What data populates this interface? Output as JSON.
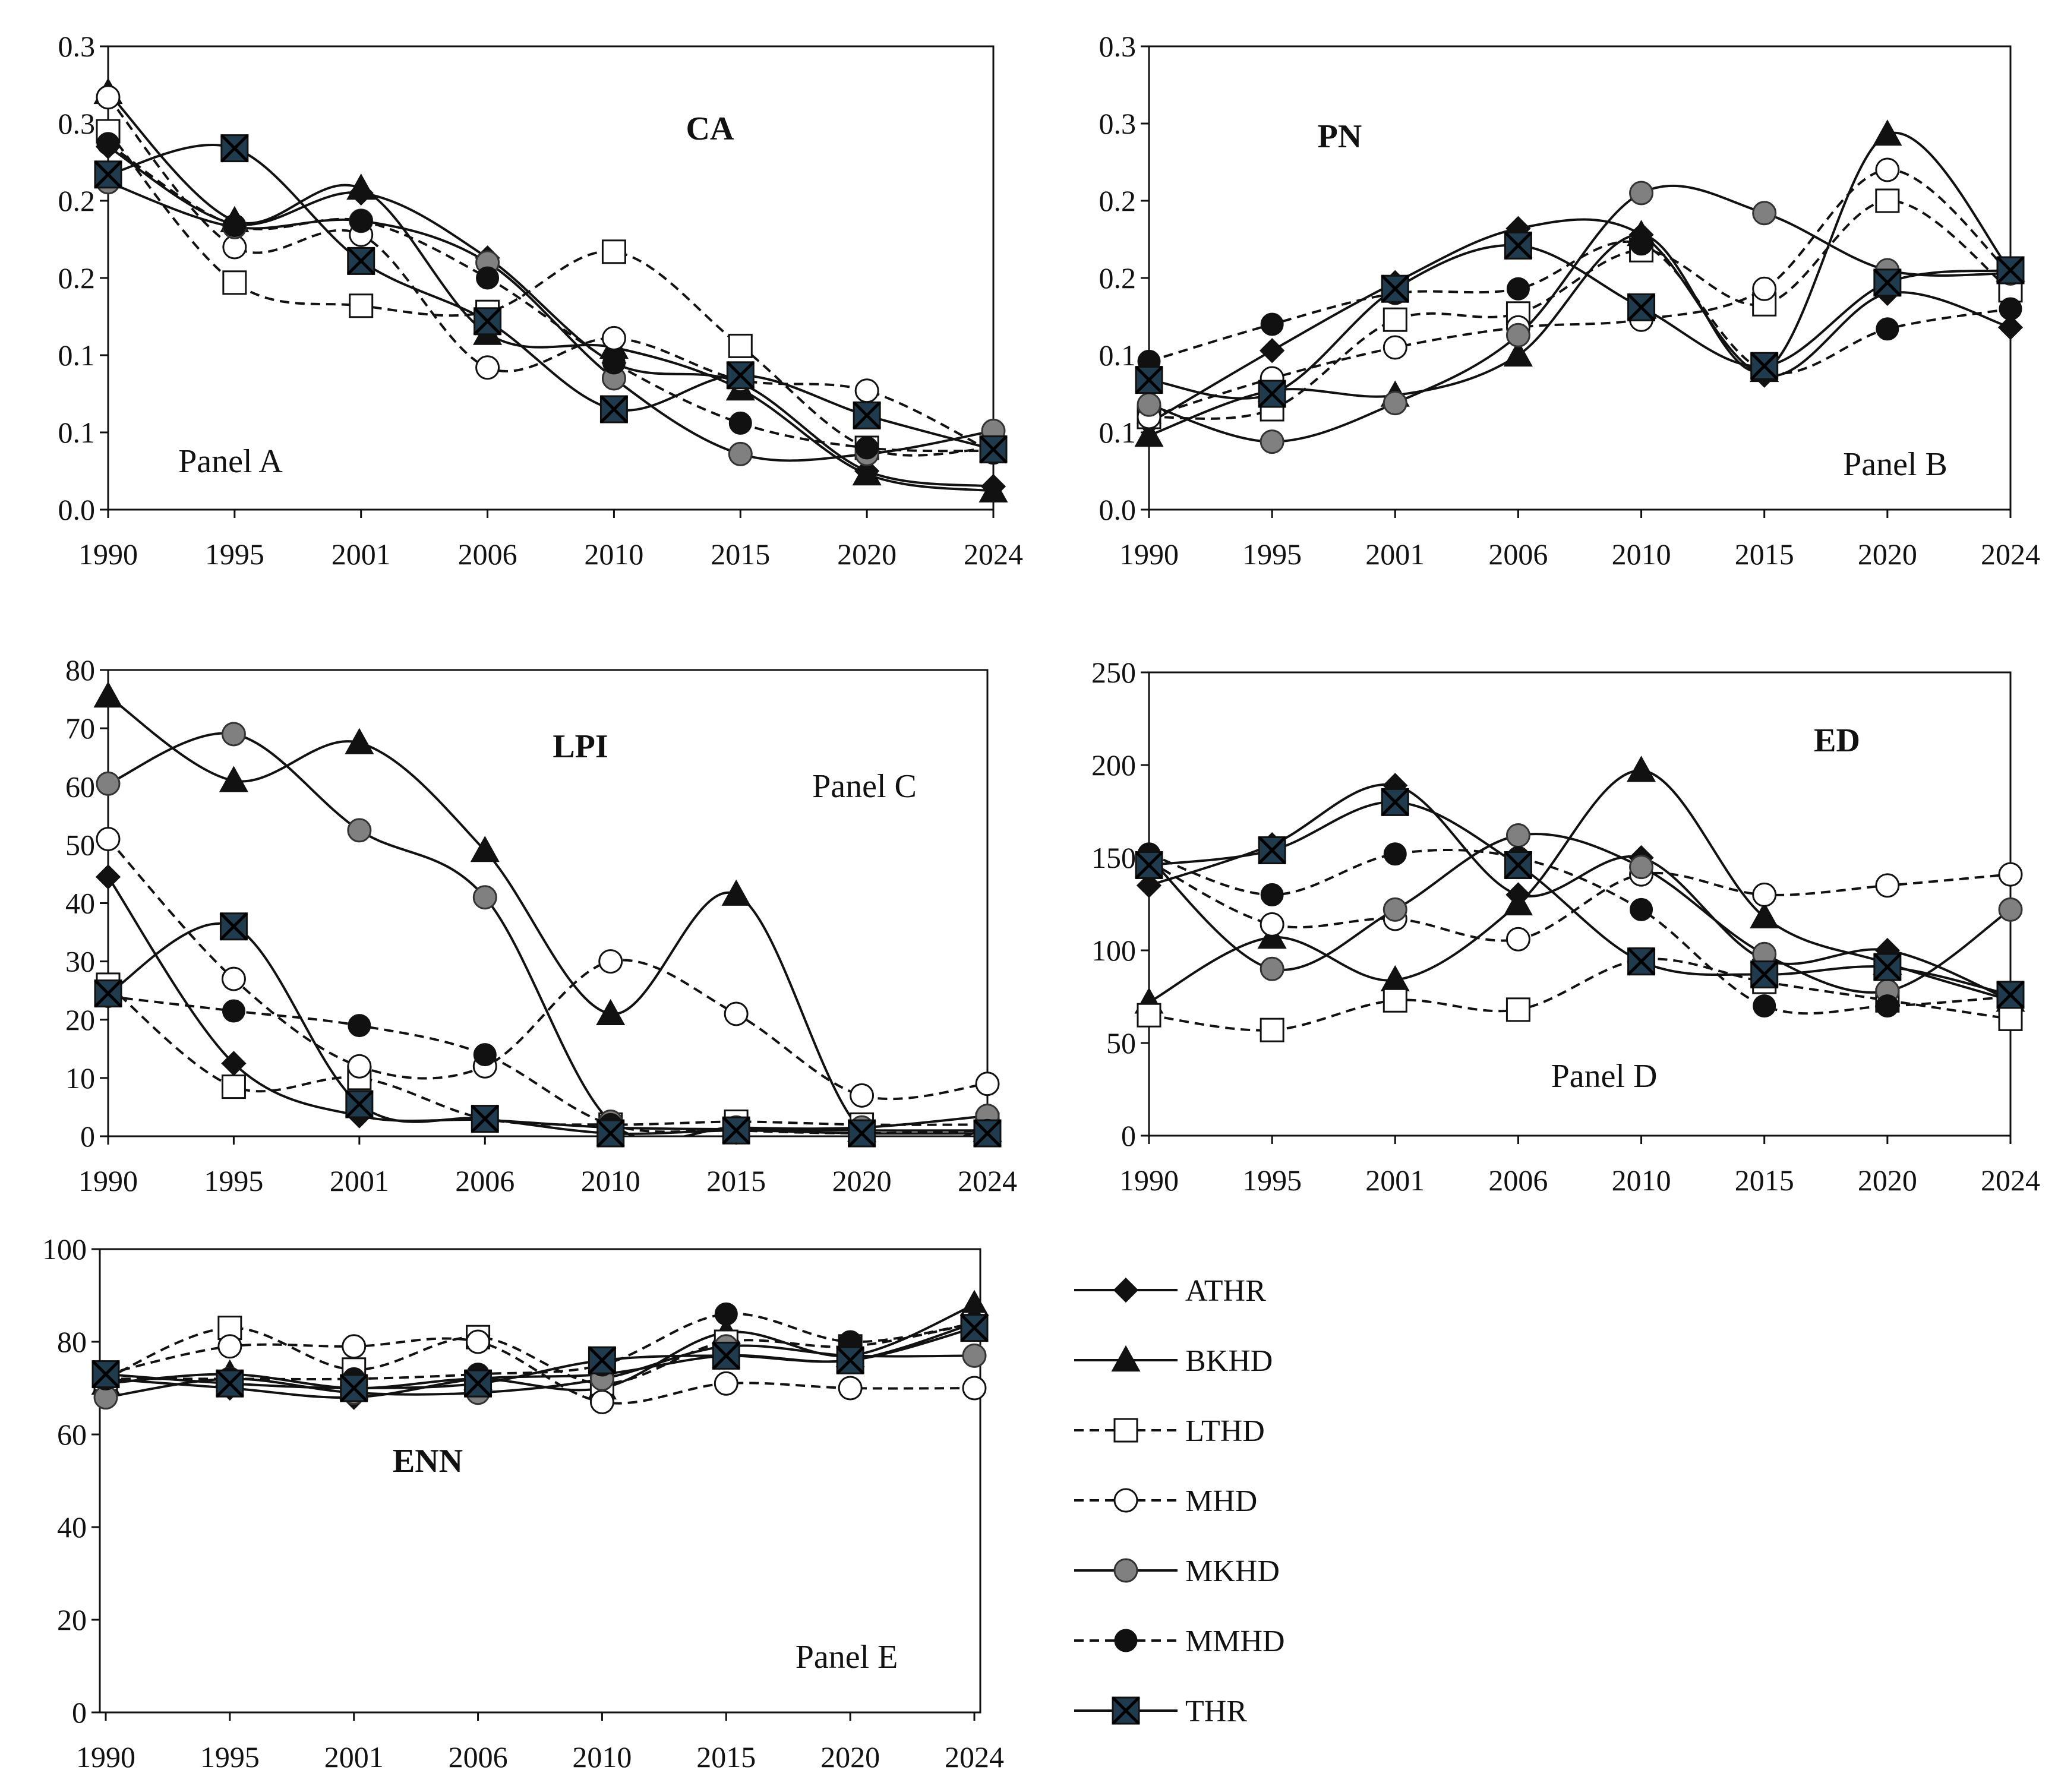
{
  "colors": {
    "ATHR": "#111111",
    "BKHD": "#111111",
    "LTHD": "#111111",
    "MHD": "#111111",
    "MKHD": "#808080",
    "MMHD": "#111111",
    "THR": "#1f3b4d"
  },
  "legend": {
    "position": "bottom-right",
    "entries": [
      {
        "name": "ATHR",
        "marker": "diamond",
        "dash": false
      },
      {
        "name": "BKHD",
        "marker": "triangle",
        "dash": false
      },
      {
        "name": "LTHD",
        "marker": "square-open",
        "dash": true
      },
      {
        "name": "MHD",
        "marker": "circle-open",
        "dash": true
      },
      {
        "name": "MKHD",
        "marker": "circle-gray",
        "dash": false
      },
      {
        "name": "MMHD",
        "marker": "circle-filled",
        "dash": true
      },
      {
        "name": "THR",
        "marker": "square-x",
        "dash": false
      }
    ]
  },
  "chart_data": [
    {
      "type": "line",
      "title": "CA",
      "panel_label": "Panel A",
      "categories": [
        "1990",
        "1995",
        "2001",
        "2006",
        "2010",
        "2015",
        "2020",
        "2024"
      ],
      "ylim": [
        0,
        0.3
      ],
      "yticks": [
        0,
        0.05,
        0.1,
        0.15,
        0.2,
        0.25,
        0.3
      ],
      "yticklabels": [
        "0.0",
        "0.1",
        "0.1",
        "0.2",
        "0.2",
        "0.3",
        "0.3"
      ],
      "grid": false,
      "series": [
        {
          "name": "ATHR",
          "values": [
            0.235,
            0.185,
            0.205,
            0.163,
            0.095,
            0.082,
            0.025,
            0.015
          ]
        },
        {
          "name": "BKHD",
          "values": [
            0.27,
            0.187,
            0.208,
            0.114,
            0.105,
            0.078,
            0.023,
            0.012
          ]
        },
        {
          "name": "LTHD",
          "values": [
            0.245,
            0.147,
            0.132,
            0.128,
            0.167,
            0.106,
            0.04,
            0.04
          ]
        },
        {
          "name": "MHD",
          "values": [
            0.267,
            0.17,
            0.178,
            0.092,
            0.111,
            0.084,
            0.077,
            0.037
          ]
        },
        {
          "name": "MKHD",
          "values": [
            0.212,
            0.183,
            0.187,
            0.16,
            0.085,
            0.036,
            0.036,
            0.051
          ]
        },
        {
          "name": "MMHD",
          "values": [
            0.237,
            0.184,
            0.187,
            0.15,
            0.095,
            0.056,
            0.04,
            0.038
          ]
        },
        {
          "name": "THR",
          "values": [
            0.217,
            0.234,
            0.161,
            0.122,
            0.065,
            0.087,
            0.061,
            0.039
          ]
        }
      ]
    },
    {
      "type": "line",
      "title": "PN",
      "panel_label": "Panel B",
      "categories": [
        "1990",
        "1995",
        "2001",
        "2006",
        "2010",
        "2015",
        "2020",
        "2024"
      ],
      "ylim": [
        0,
        0.3
      ],
      "yticks": [
        0,
        0.05,
        0.1,
        0.15,
        0.2,
        0.25,
        0.3
      ],
      "yticklabels": [
        "0.0",
        "0.1",
        "0.1",
        "0.2",
        "0.2",
        "0.3",
        "0.3"
      ],
      "grid": false,
      "series": [
        {
          "name": "ATHR",
          "values": [
            0.056,
            0.103,
            0.147,
            0.182,
            0.178,
            0.087,
            0.14,
            0.118
          ]
        },
        {
          "name": "BKHD",
          "values": [
            0.048,
            0.077,
            0.074,
            0.1,
            0.178,
            0.09,
            0.243,
            0.155
          ]
        },
        {
          "name": "LTHD",
          "values": [
            0.06,
            0.065,
            0.123,
            0.127,
            0.168,
            0.133,
            0.2,
            0.142
          ]
        },
        {
          "name": "MHD",
          "values": [
            0.06,
            0.085,
            0.105,
            0.118,
            0.123,
            0.143,
            0.22,
            0.153
          ]
        },
        {
          "name": "MKHD",
          "values": [
            0.068,
            0.044,
            0.069,
            0.113,
            0.205,
            0.192,
            0.155,
            0.153
          ]
        },
        {
          "name": "MMHD",
          "values": [
            0.096,
            0.12,
            0.14,
            0.143,
            0.172,
            0.09,
            0.117,
            0.13
          ]
        },
        {
          "name": "THR",
          "values": [
            0.084,
            0.075,
            0.143,
            0.171,
            0.131,
            0.093,
            0.147,
            0.155
          ]
        }
      ]
    },
    {
      "type": "line",
      "title": "LPI",
      "panel_label": "Panel C",
      "categories": [
        "1990",
        "1995",
        "2001",
        "2006",
        "2010",
        "2015",
        "2020",
        "2024"
      ],
      "ylim": [
        0,
        80
      ],
      "yticks": [
        0,
        10,
        20,
        30,
        40,
        50,
        60,
        70,
        80
      ],
      "yticklabels": [
        "0",
        "10",
        "20",
        "30",
        "40",
        "50",
        "60",
        "70",
        "80"
      ],
      "grid": false,
      "series": [
        {
          "name": "ATHR",
          "values": [
            44.5,
            12.5,
            3.5,
            2.8,
            1.5,
            1.2,
            1,
            1
          ]
        },
        {
          "name": "BKHD",
          "values": [
            75.5,
            61,
            67.5,
            49,
            21,
            41.5,
            1,
            1
          ]
        },
        {
          "name": "LTHD",
          "values": [
            26,
            8.5,
            10,
            3,
            2,
            2.5,
            2,
            2
          ]
        },
        {
          "name": "MHD",
          "values": [
            51,
            27,
            12,
            12,
            30,
            21,
            7,
            9
          ]
        },
        {
          "name": "MKHD",
          "values": [
            60.5,
            69,
            52.5,
            41,
            2.5,
            1.5,
            1.5,
            3.5
          ]
        },
        {
          "name": "MMHD",
          "values": [
            24,
            21.5,
            19,
            14,
            2,
            1,
            0.5,
            1
          ]
        },
        {
          "name": "THR",
          "values": [
            24.5,
            36,
            5.5,
            3,
            0.5,
            1,
            0.5,
            0.5
          ]
        }
      ]
    },
    {
      "type": "line",
      "title": "ED",
      "panel_label": "Panel D",
      "categories": [
        "1990",
        "1995",
        "2001",
        "2006",
        "2010",
        "2015",
        "2020",
        "2024"
      ],
      "ylim": [
        0,
        250
      ],
      "yticks": [
        0,
        50,
        100,
        150,
        200,
        250
      ],
      "yticklabels": [
        "0",
        "50",
        "100",
        "150",
        "200",
        "250"
      ],
      "grid": false,
      "series": [
        {
          "name": "ATHR",
          "values": [
            135,
            157,
            189,
            130,
            150,
            95,
            100,
            73
          ]
        },
        {
          "name": "BKHD",
          "values": [
            72,
            107,
            84,
            125,
            197,
            118,
            93,
            73
          ]
        },
        {
          "name": "LTHD",
          "values": [
            65,
            57,
            73,
            68,
            95,
            83,
            73,
            63
          ]
        },
        {
          "name": "MHD",
          "values": [
            148,
            114,
            117,
            106,
            141,
            130,
            135,
            141
          ]
        },
        {
          "name": "MKHD",
          "values": [
            150,
            90,
            122,
            162,
            145,
            98,
            78,
            122
          ]
        },
        {
          "name": "MMHD",
          "values": [
            152,
            130,
            152,
            150,
            122,
            70,
            70,
            75
          ]
        },
        {
          "name": "THR",
          "values": [
            146,
            154,
            180,
            146,
            94,
            87,
            91,
            76
          ]
        }
      ]
    },
    {
      "type": "line",
      "title": "ENN",
      "panel_label": "Panel E",
      "categories": [
        "1990",
        "1995",
        "2001",
        "2006",
        "2010",
        "2015",
        "2020",
        "2024"
      ],
      "ylim": [
        0,
        100
      ],
      "yticks": [
        0,
        20,
        40,
        60,
        80,
        100
      ],
      "yticklabels": [
        "0",
        "20",
        "40",
        "60",
        "80",
        "100"
      ],
      "grid": false,
      "series": [
        {
          "name": "ATHR",
          "values": [
            72,
            70,
            68,
            72,
            73,
            77,
            76,
            84
          ]
        },
        {
          "name": "BKHD",
          "values": [
            71,
            73,
            70,
            72,
            70,
            82,
            77,
            88
          ]
        },
        {
          "name": "LTHD",
          "values": [
            72,
            83,
            74,
            81,
            71,
            80,
            79,
            84
          ]
        },
        {
          "name": "MHD",
          "values": [
            73,
            79,
            79,
            80,
            67,
            71,
            70,
            70
          ]
        },
        {
          "name": "MKHD",
          "values": [
            68,
            72,
            69,
            69,
            72,
            79,
            77,
            77
          ]
        },
        {
          "name": "MMHD",
          "values": [
            72,
            72,
            72,
            73,
            75,
            86,
            80,
            84
          ]
        },
        {
          "name": "THR",
          "values": [
            73,
            71,
            70,
            71,
            76,
            77,
            76,
            83
          ]
        }
      ]
    }
  ]
}
